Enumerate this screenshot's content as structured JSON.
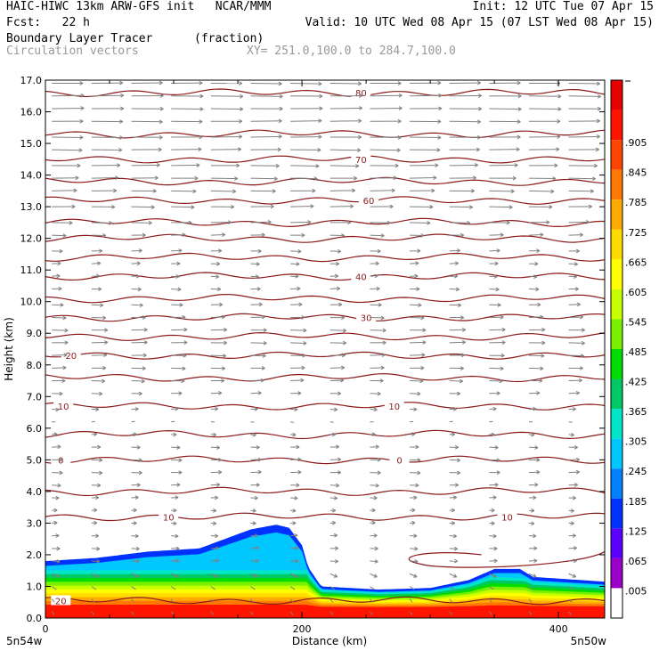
{
  "header": {
    "line1_left": "HAIC-HIWC 13km ARW-GFS init   NCAR/MMM",
    "line1_right": "Init: 12 UTC Tue 07 Apr 15",
    "line2_left": "Fcst:   22 h",
    "line2_right": "Valid: 10 UTC Wed 08 Apr 15 (07 LST Wed 08 Apr 15)",
    "line3_left": "Boundary Layer Tracer",
    "line3_mid": "(fraction)",
    "line4_left": "Circulation vectors",
    "line4_mid": "XY= 251.0,100.0 to 284.7,100.0"
  },
  "colors": {
    "contour": "#8b1a1a",
    "vector": "#808080",
    "palette": [
      "#ffffff",
      "#9b00c8",
      "#5a00ff",
      "#0032ff",
      "#0082ff",
      "#00c8ff",
      "#00e6c8",
      "#00c864",
      "#00dc00",
      "#78f000",
      "#c8ff00",
      "#ffff00",
      "#ffdc00",
      "#ffaa00",
      "#ff7800",
      "#ff4600",
      "#ff1400",
      "#e60000"
    ]
  },
  "chart_data": {
    "type": "vertical-cross-section",
    "xlabel": "Distance (km)",
    "ylabel": "Height (km)",
    "xlim": [
      0,
      436
    ],
    "ylim": [
      0,
      17
    ],
    "x_ticks": [
      0,
      200,
      400
    ],
    "x_tick_labels": [
      "0",
      "200",
      "400"
    ],
    "y_ticks": [
      0,
      1,
      2,
      3,
      4,
      5,
      6,
      7,
      8,
      9,
      10,
      11,
      12,
      13,
      14,
      15,
      16,
      17
    ],
    "y_tick_labels": [
      "0.0",
      "1.0",
      "2.0",
      "3.0",
      "4.0",
      "5.0",
      "6.0",
      "7.0",
      "8.0",
      "9.0",
      "10.0",
      "11.0",
      "12.0",
      "13.0",
      "14.0",
      "15.0",
      "16.0",
      "17.0"
    ],
    "x_endpoint_labels": [
      "5n54w",
      "5n50w"
    ],
    "colorbar_labels": [
      ".005",
      ".065",
      ".125",
      ".185",
      ".245",
      ".305",
      ".365",
      ".425",
      ".485",
      ".545",
      ".605",
      ".665",
      ".725",
      ".785",
      ".845",
      ".905"
    ],
    "temperature_contours": [
      {
        "label": "80",
        "level": -80,
        "height_km": 16.6,
        "label_x_km": 246
      },
      {
        "label": "70",
        "level": -70,
        "height_km": 14.5,
        "label_x_km": 246
      },
      {
        "label": "60",
        "level": -60,
        "height_km": 13.2,
        "label_x_km": 252
      },
      {
        "label": "40",
        "level": -40,
        "height_km": 10.8,
        "label_x_km": 246
      },
      {
        "label": "30",
        "level": -30,
        "height_km": 9.5,
        "label_x_km": 250
      },
      {
        "label": "20",
        "level": -20,
        "height_km": 8.3,
        "label_x_km": 20
      },
      {
        "label": "10",
        "level": -10,
        "height_km": 6.7,
        "label_x_km": 14
      },
      {
        "label": "10",
        "level": -10,
        "height_km": 6.7,
        "label_x_km": 272
      },
      {
        "label": "0",
        "level": 0,
        "height_km": 5.0,
        "label_x_km": 12
      },
      {
        "label": "0",
        "level": 0,
        "height_km": 5.0,
        "label_x_km": 276
      },
      {
        "label": "10",
        "level": 10,
        "height_km": 3.2,
        "label_x_km": 96
      },
      {
        "label": "10",
        "level": 10,
        "height_km": 3.2,
        "label_x_km": 360
      },
      {
        "label": "20",
        "level": 20,
        "height_km": 0.55,
        "label_x_km": 12
      }
    ],
    "extra_contour_heights_km": [
      15.3,
      13.8,
      12.5,
      12.0,
      11.4,
      10.1,
      8.9,
      7.6,
      5.8,
      4.0
    ],
    "tracer_top_km": [
      [
        0,
        1.8
      ],
      [
        40,
        1.9
      ],
      [
        80,
        2.1
      ],
      [
        120,
        2.2
      ],
      [
        140,
        2.5
      ],
      [
        160,
        2.8
      ],
      [
        180,
        2.95
      ],
      [
        190,
        2.85
      ],
      [
        200,
        2.3
      ],
      [
        205,
        1.6
      ],
      [
        215,
        1.0
      ],
      [
        260,
        0.9
      ],
      [
        300,
        0.95
      ],
      [
        330,
        1.2
      ],
      [
        350,
        1.55
      ],
      [
        370,
        1.55
      ],
      [
        380,
        1.3
      ],
      [
        436,
        1.15
      ]
    ],
    "wind_rows_km": [
      16.9,
      16.5,
      16.1,
      15.7,
      15.2,
      14.8,
      14.3,
      13.9,
      13.5,
      13.0,
      12.5,
      12.1,
      11.6,
      11.2,
      10.8,
      10.4,
      9.9,
      9.5,
      9.1,
      8.7,
      8.3,
      7.9,
      7.5,
      7.1,
      6.6,
      6.2,
      5.8,
      5.4,
      5.0,
      4.6,
      4.2,
      3.8,
      3.4,
      3.0,
      2.6,
      2.2,
      1.8,
      1.4,
      1.0,
      0.6,
      0.2
    ],
    "wind_u_by_row": [
      3.5,
      3.6,
      3.6,
      3.5,
      3.5,
      3.4,
      3.2,
      3.0,
      2.8,
      2.6,
      2.3,
      1.6,
      1.2,
      1.0,
      0.9,
      1.1,
      1.3,
      1.6,
      1.8,
      1.8,
      1.7,
      1.6,
      1.5,
      1.2,
      0.8,
      0.4,
      0.6,
      1.0,
      1.2,
      1.2,
      1.0,
      0.8,
      0.6,
      0.6,
      0.8,
      0.9,
      0.9,
      0.8,
      0.5,
      0.3,
      0.2
    ]
  }
}
